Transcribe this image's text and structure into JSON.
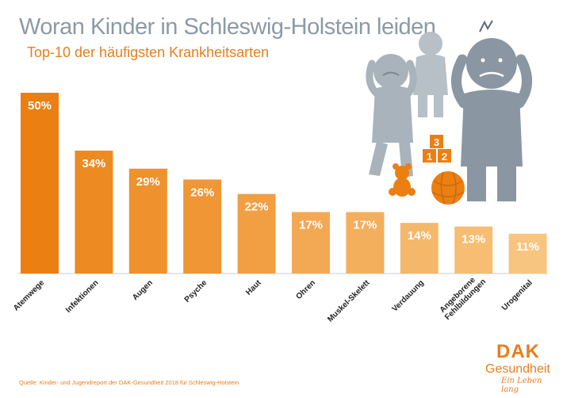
{
  "title": "Woran Kinder in Schleswig-Holstein leiden",
  "subtitle": "Top-10 der häufigsten Krankheitsarten",
  "source": "Quelle: Kinder- und Jugendreport der DAK-Gesundheit 2018 für Schleswig-Holstein",
  "logo": {
    "brand": "DAK",
    "name": "Gesundheit",
    "slogan": "Ein Leben lang"
  },
  "illustration": {
    "blocks": [
      "3",
      "1",
      "2"
    ]
  },
  "colors": {
    "title": "#8c9aa6",
    "accent": "#e87e1c",
    "figure": "#a9b3bb",
    "figure_dark": "#8a97a2",
    "bars": [
      "#ec7f12",
      "#ee8a22",
      "#ef912c",
      "#f09634",
      "#f19f42",
      "#f3a954",
      "#f4af5c",
      "#f5b86b",
      "#f6bd73",
      "#f7c580"
    ]
  },
  "chart_data": {
    "type": "bar",
    "categories": [
      "Atemwege",
      "Infektionen",
      "Augen",
      "Psyche",
      "Haut",
      "Ohren",
      "Muskel-Skelett",
      "Verdauung",
      "Angeborene Fehlbildungen",
      "Urogenital"
    ],
    "values": [
      50,
      34,
      29,
      26,
      22,
      17,
      17,
      14,
      13,
      11
    ],
    "labels": [
      "50%",
      "34%",
      "29%",
      "26%",
      "22%",
      "17%",
      "17%",
      "14%",
      "13%",
      "11%"
    ],
    "unit": "%",
    "ylim": [
      0,
      50
    ],
    "grid": false,
    "legend": "none"
  }
}
